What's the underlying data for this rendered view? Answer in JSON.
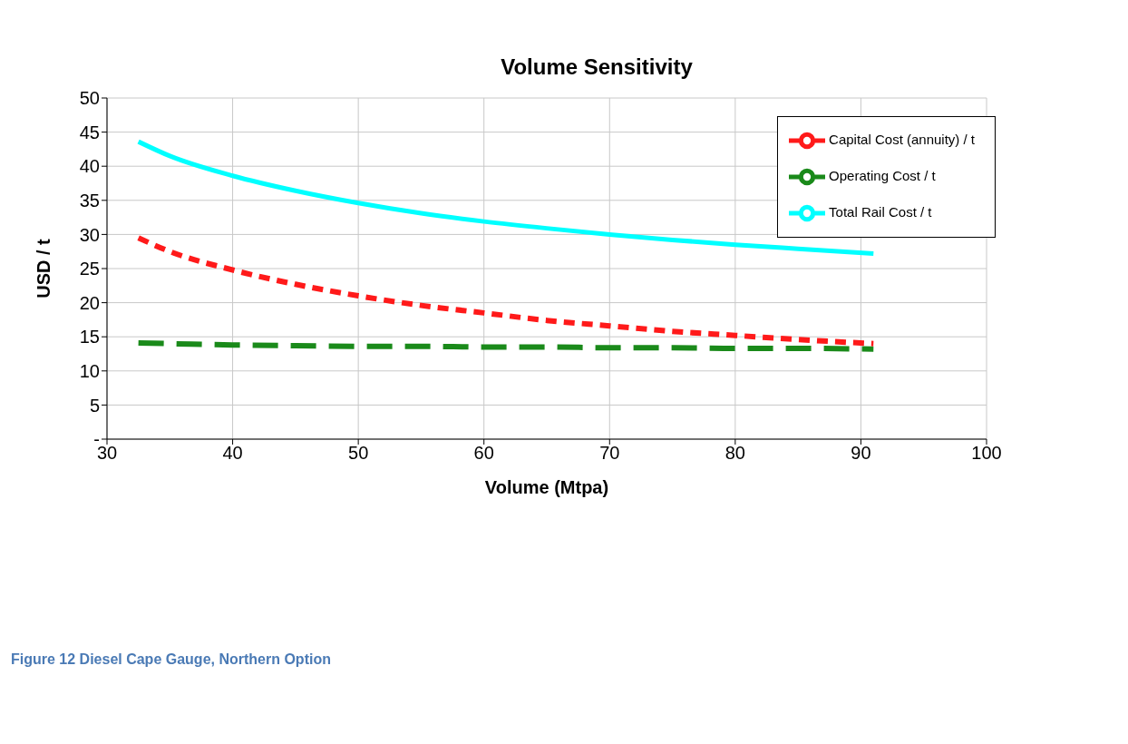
{
  "chart_data": {
    "type": "line",
    "title": "Volume Sensitivity",
    "xlabel": "Volume (Mtpa)",
    "ylabel": "USD / t",
    "annotations": [
      "Figure 12 Diesel Cape Gauge, Northern Option"
    ],
    "x": [
      32.5,
      35,
      40,
      45,
      50,
      55,
      60,
      65,
      70,
      75,
      80,
      85,
      91
    ],
    "series": [
      {
        "name": "Operating Cost / t",
        "color": "#1a8a1a",
        "line_style": "dashed",
        "values": [
          14.1,
          14.0,
          13.8,
          13.7,
          13.6,
          13.6,
          13.5,
          13.5,
          13.4,
          13.4,
          13.3,
          13.3,
          13.2
        ]
      },
      {
        "name": "Capital Cost (annuity) / t",
        "color": "#ff1a1a",
        "line_style": "dotted",
        "values": [
          29.5,
          27.5,
          24.8,
          22.7,
          21.0,
          19.6,
          18.5,
          17.4,
          16.6,
          15.8,
          15.2,
          14.6,
          14.0
        ]
      },
      {
        "name": "Total Rail Cost / t",
        "color": "#00ffff",
        "line_style": "solid",
        "values": [
          43.6,
          41.5,
          38.6,
          36.4,
          34.6,
          33.1,
          31.9,
          30.9,
          30.0,
          29.2,
          28.5,
          27.9,
          27.2
        ]
      }
    ],
    "xlim": [
      30,
      100
    ],
    "xticks": [
      30,
      40,
      50,
      60,
      70,
      80,
      90,
      100
    ],
    "ylim": [
      0,
      50
    ],
    "yticks": [
      {
        "value": 0,
        "label": "-"
      },
      5,
      10,
      15,
      20,
      25,
      30,
      35,
      40,
      45,
      50
    ],
    "grid": true,
    "legend": "top right",
    "marker": "none"
  }
}
